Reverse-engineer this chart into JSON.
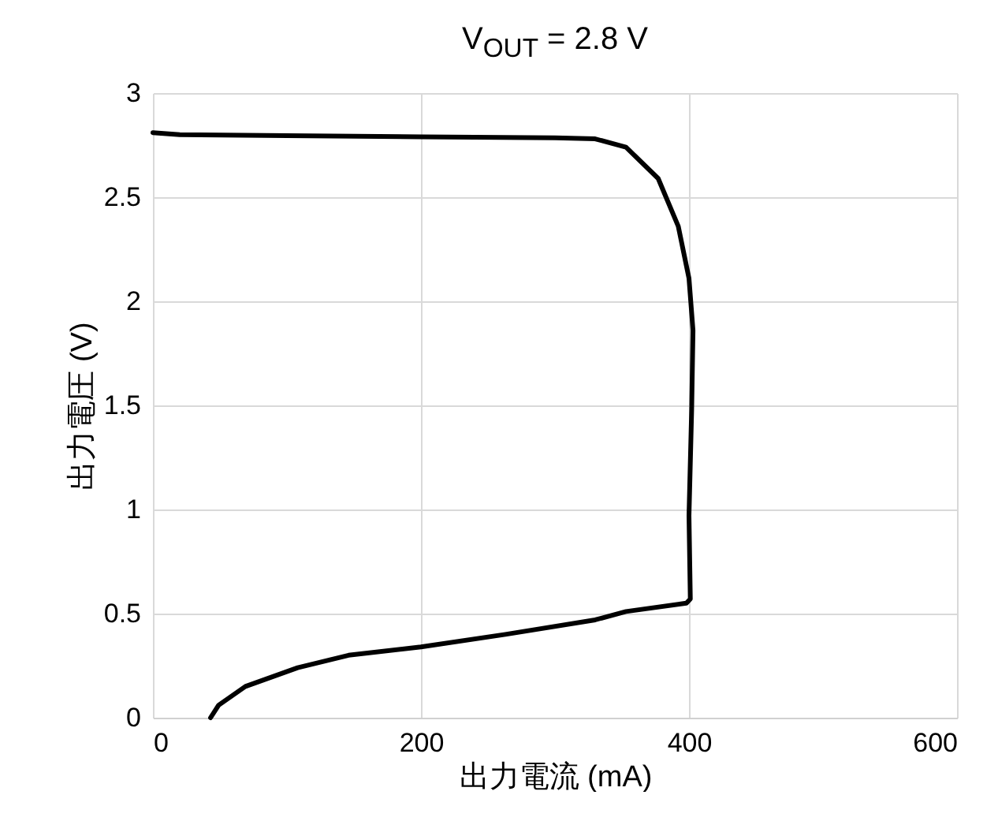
{
  "chart_data": {
    "type": "line",
    "title": "V$_{OUT}$ = 2.8 V",
    "xlabel": "出力電流 (mA)",
    "ylabel": "出力電圧 (V)",
    "x": [
      0,
      20,
      100,
      200,
      300,
      330,
      353,
      377,
      392,
      400,
      403,
      402,
      400,
      401,
      398,
      353,
      330,
      263,
      200,
      146,
      108,
      69,
      49,
      43
    ],
    "series": [
      {
        "color": "#000000",
        "values": [
          2.81,
          2.8,
          2.795,
          2.79,
          2.785,
          2.78,
          2.74,
          2.59,
          2.36,
          2.11,
          1.86,
          1.48,
          0.97,
          0.57,
          0.55,
          0.51,
          0.47,
          0.4,
          0.34,
          0.3,
          0.24,
          0.15,
          0.06,
          0
        ]
      }
    ],
    "xlim": [
      0,
      600
    ],
    "xticks": [
      0,
      200,
      400,
      600
    ],
    "ylim": [
      0,
      3
    ],
    "yticks": [
      0,
      0.5,
      1,
      1.5,
      2,
      2.5,
      3
    ],
    "grid": true,
    "marker": "none",
    "line_style": "solid"
  }
}
